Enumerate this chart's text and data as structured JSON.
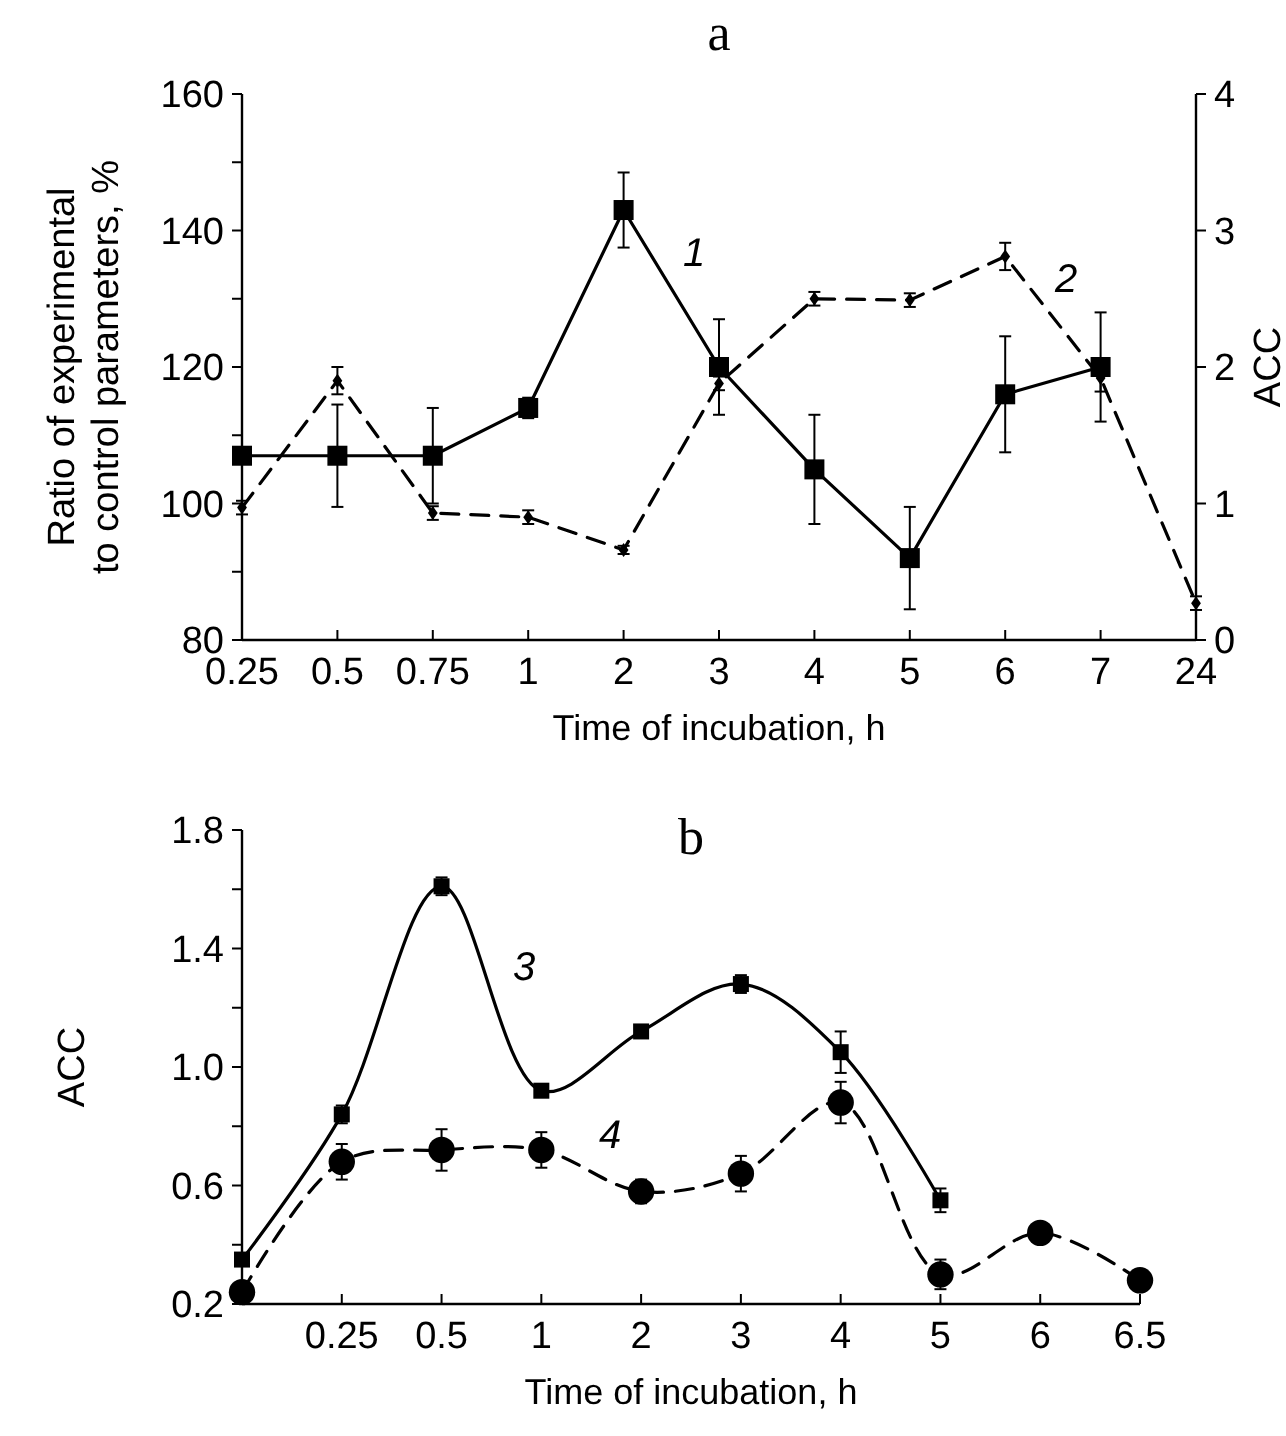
{
  "chart_data": [
    {
      "type": "line",
      "title": "a",
      "xlabel": "Time of incubation, h",
      "ylabel": "Ratio of experimental to control parameters, %",
      "y2label": "ACC",
      "categories": [
        "0.25",
        "0.5",
        "0.75",
        "1",
        "2",
        "3",
        "4",
        "5",
        "6",
        "7",
        "24"
      ],
      "ylim": [
        80,
        160
      ],
      "yticks": [
        80,
        {
          "value": 90,
          "label": null
        },
        100,
        {
          "value": 110,
          "label": null
        },
        120,
        {
          "value": 130,
          "label": null
        },
        140,
        {
          "value": 150,
          "label": null
        },
        160
      ],
      "y2lim": [
        0,
        4
      ],
      "y2ticks": [
        0,
        1,
        2,
        3,
        4
      ],
      "series": [
        {
          "color": "#000000",
          "marker": "square",
          "line_style": "solid",
          "values": [
            107,
            107,
            107,
            114,
            143,
            120,
            105,
            92,
            116,
            120,
            null
          ],
          "errors": [
            null,
            7.5,
            7,
            1.5,
            5.5,
            7,
            8,
            7.5,
            8.5,
            8,
            null
          ]
        },
        {
          "color": "#000000",
          "marker": "diamond",
          "line_style": "dashed",
          "axis": "y2",
          "values": [
            0.97,
            1.9,
            0.93,
            0.9,
            0.66,
            1.88,
            2.5,
            2.49,
            2.81,
            1.92,
            0.27
          ],
          "errors": [
            0.05,
            0.1,
            0.05,
            0.05,
            0.03,
            0.05,
            0.05,
            0.05,
            0.1,
            0.1,
            0.05
          ]
        }
      ],
      "annotations": [
        "1",
        "2"
      ]
    },
    {
      "type": "line",
      "title": "b",
      "xlabel": "Time of incubation, h",
      "ylabel": "ACC",
      "categories": [
        null,
        "0.25",
        "0.5",
        "1",
        "2",
        "3",
        "4",
        "5",
        "6",
        "6.5"
      ],
      "ylim": [
        0.2,
        1.8
      ],
      "yticks": [
        0.2,
        {
          "value": 0.4,
          "label": null
        },
        0.6,
        {
          "value": 0.8,
          "label": null
        },
        {
          "value": 1,
          "label": "1.0"
        },
        {
          "value": 1.2,
          "label": null
        },
        1.4,
        {
          "value": 1.6,
          "label": null
        },
        1.8
      ],
      "series": [
        {
          "color": "#000000",
          "marker": "square",
          "line_style": "solid",
          "values": [
            0.35,
            0.84,
            1.61,
            0.92,
            1.12,
            1.28,
            1.05,
            0.55,
            null,
            null
          ],
          "errors": [
            null,
            0.03,
            0.03,
            null,
            null,
            0.03,
            0.07,
            0.04,
            null,
            null
          ]
        },
        {
          "color": "#000000",
          "marker": "circle",
          "line_style": "dashed",
          "values": [
            0.24,
            0.68,
            0.72,
            0.72,
            0.58,
            0.64,
            0.88,
            0.3,
            0.44,
            0.28
          ],
          "errors": [
            null,
            0.06,
            0.07,
            0.06,
            0.04,
            0.06,
            0.07,
            0.05,
            null,
            null
          ]
        }
      ],
      "annotations": [
        "3",
        "4"
      ]
    }
  ]
}
